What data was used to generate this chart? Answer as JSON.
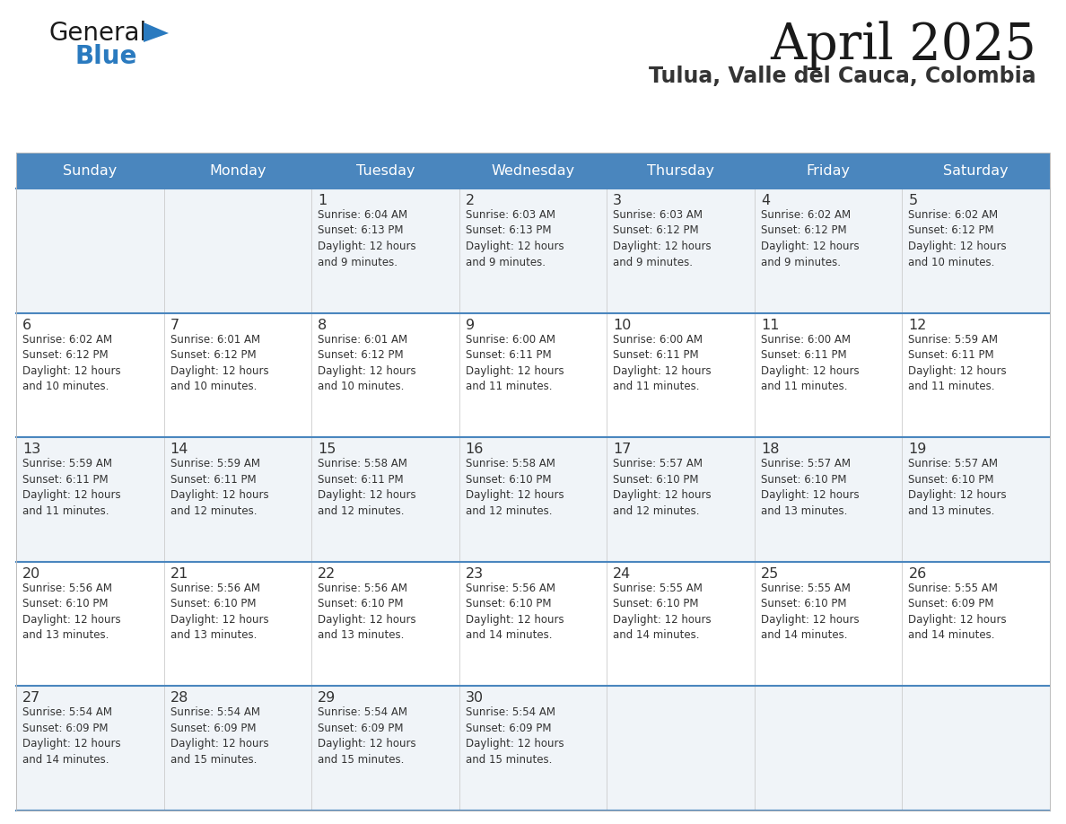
{
  "title": "April 2025",
  "subtitle": "Tulua, Valle del Cauca, Colombia",
  "header_bg": "#4a86be",
  "header_text": "#ffffff",
  "day_names": [
    "Sunday",
    "Monday",
    "Tuesday",
    "Wednesday",
    "Thursday",
    "Friday",
    "Saturday"
  ],
  "row_bg_odd": "#f0f4f8",
  "row_bg_even": "#ffffff",
  "cell_text_color": "#333333",
  "date_text_color": "#333333",
  "divider_color": "#4a86be",
  "logo_general_color": "#1a1a1a",
  "logo_blue_color": "#2a7abf",
  "title_color": "#1a1a1a",
  "subtitle_color": "#333333",
  "weeks": [
    [
      {
        "day": null,
        "info": null
      },
      {
        "day": null,
        "info": null
      },
      {
        "day": 1,
        "info": "Sunrise: 6:04 AM\nSunset: 6:13 PM\nDaylight: 12 hours\nand 9 minutes."
      },
      {
        "day": 2,
        "info": "Sunrise: 6:03 AM\nSunset: 6:13 PM\nDaylight: 12 hours\nand 9 minutes."
      },
      {
        "day": 3,
        "info": "Sunrise: 6:03 AM\nSunset: 6:12 PM\nDaylight: 12 hours\nand 9 minutes."
      },
      {
        "day": 4,
        "info": "Sunrise: 6:02 AM\nSunset: 6:12 PM\nDaylight: 12 hours\nand 9 minutes."
      },
      {
        "day": 5,
        "info": "Sunrise: 6:02 AM\nSunset: 6:12 PM\nDaylight: 12 hours\nand 10 minutes."
      }
    ],
    [
      {
        "day": 6,
        "info": "Sunrise: 6:02 AM\nSunset: 6:12 PM\nDaylight: 12 hours\nand 10 minutes."
      },
      {
        "day": 7,
        "info": "Sunrise: 6:01 AM\nSunset: 6:12 PM\nDaylight: 12 hours\nand 10 minutes."
      },
      {
        "day": 8,
        "info": "Sunrise: 6:01 AM\nSunset: 6:12 PM\nDaylight: 12 hours\nand 10 minutes."
      },
      {
        "day": 9,
        "info": "Sunrise: 6:00 AM\nSunset: 6:11 PM\nDaylight: 12 hours\nand 11 minutes."
      },
      {
        "day": 10,
        "info": "Sunrise: 6:00 AM\nSunset: 6:11 PM\nDaylight: 12 hours\nand 11 minutes."
      },
      {
        "day": 11,
        "info": "Sunrise: 6:00 AM\nSunset: 6:11 PM\nDaylight: 12 hours\nand 11 minutes."
      },
      {
        "day": 12,
        "info": "Sunrise: 5:59 AM\nSunset: 6:11 PM\nDaylight: 12 hours\nand 11 minutes."
      }
    ],
    [
      {
        "day": 13,
        "info": "Sunrise: 5:59 AM\nSunset: 6:11 PM\nDaylight: 12 hours\nand 11 minutes."
      },
      {
        "day": 14,
        "info": "Sunrise: 5:59 AM\nSunset: 6:11 PM\nDaylight: 12 hours\nand 12 minutes."
      },
      {
        "day": 15,
        "info": "Sunrise: 5:58 AM\nSunset: 6:11 PM\nDaylight: 12 hours\nand 12 minutes."
      },
      {
        "day": 16,
        "info": "Sunrise: 5:58 AM\nSunset: 6:10 PM\nDaylight: 12 hours\nand 12 minutes."
      },
      {
        "day": 17,
        "info": "Sunrise: 5:57 AM\nSunset: 6:10 PM\nDaylight: 12 hours\nand 12 minutes."
      },
      {
        "day": 18,
        "info": "Sunrise: 5:57 AM\nSunset: 6:10 PM\nDaylight: 12 hours\nand 13 minutes."
      },
      {
        "day": 19,
        "info": "Sunrise: 5:57 AM\nSunset: 6:10 PM\nDaylight: 12 hours\nand 13 minutes."
      }
    ],
    [
      {
        "day": 20,
        "info": "Sunrise: 5:56 AM\nSunset: 6:10 PM\nDaylight: 12 hours\nand 13 minutes."
      },
      {
        "day": 21,
        "info": "Sunrise: 5:56 AM\nSunset: 6:10 PM\nDaylight: 12 hours\nand 13 minutes."
      },
      {
        "day": 22,
        "info": "Sunrise: 5:56 AM\nSunset: 6:10 PM\nDaylight: 12 hours\nand 13 minutes."
      },
      {
        "day": 23,
        "info": "Sunrise: 5:56 AM\nSunset: 6:10 PM\nDaylight: 12 hours\nand 14 minutes."
      },
      {
        "day": 24,
        "info": "Sunrise: 5:55 AM\nSunset: 6:10 PM\nDaylight: 12 hours\nand 14 minutes."
      },
      {
        "day": 25,
        "info": "Sunrise: 5:55 AM\nSunset: 6:10 PM\nDaylight: 12 hours\nand 14 minutes."
      },
      {
        "day": 26,
        "info": "Sunrise: 5:55 AM\nSunset: 6:09 PM\nDaylight: 12 hours\nand 14 minutes."
      }
    ],
    [
      {
        "day": 27,
        "info": "Sunrise: 5:54 AM\nSunset: 6:09 PM\nDaylight: 12 hours\nand 14 minutes."
      },
      {
        "day": 28,
        "info": "Sunrise: 5:54 AM\nSunset: 6:09 PM\nDaylight: 12 hours\nand 15 minutes."
      },
      {
        "day": 29,
        "info": "Sunrise: 5:54 AM\nSunset: 6:09 PM\nDaylight: 12 hours\nand 15 minutes."
      },
      {
        "day": 30,
        "info": "Sunrise: 5:54 AM\nSunset: 6:09 PM\nDaylight: 12 hours\nand 15 minutes."
      },
      {
        "day": null,
        "info": null
      },
      {
        "day": null,
        "info": null
      },
      {
        "day": null,
        "info": null
      }
    ]
  ]
}
